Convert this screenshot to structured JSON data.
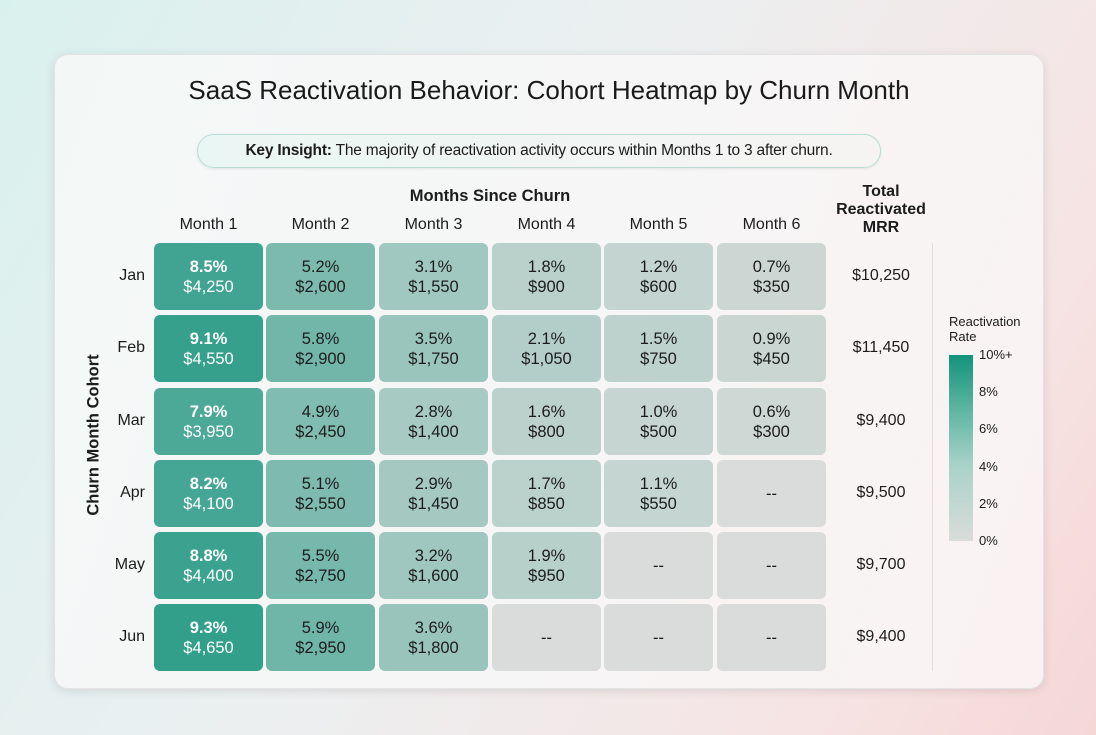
{
  "title": "SaaS Reactivation Behavior: Cohort Heatmap by Churn Month",
  "insight": {
    "label": "Key Insight:",
    "text": " The majority of reactivation activity occurs within Months 1 to 3 after churn."
  },
  "chart_data": {
    "type": "heatmap",
    "title": "SaaS Reactivation Behavior: Cohort Heatmap by Churn Month",
    "xlabel": "Months Since Churn",
    "ylabel": "Churn Month Cohort",
    "columns": [
      "Month 1",
      "Month 2",
      "Month 3",
      "Month 4",
      "Month 5",
      "Month 6"
    ],
    "rows": [
      "Jan",
      "Feb",
      "Mar",
      "Apr",
      "May",
      "Jun"
    ],
    "rates": [
      [
        8.5,
        5.2,
        3.1,
        1.8,
        1.2,
        0.7
      ],
      [
        9.1,
        5.8,
        3.5,
        2.1,
        1.5,
        0.9
      ],
      [
        7.9,
        4.9,
        2.8,
        1.6,
        1.0,
        0.6
      ],
      [
        8.2,
        5.1,
        2.9,
        1.7,
        1.1,
        null
      ],
      [
        8.8,
        5.5,
        3.2,
        1.9,
        null,
        null
      ],
      [
        9.3,
        5.9,
        3.6,
        null,
        null,
        null
      ]
    ],
    "mrr": [
      [
        "$4,250",
        "$2,600",
        "$1,550",
        "$900",
        "$600",
        "$350"
      ],
      [
        "$4,550",
        "$2,900",
        "$1,750",
        "$1,050",
        "$750",
        "$450"
      ],
      [
        "$3,950",
        "$2,450",
        "$1,400",
        "$800",
        "$500",
        "$300"
      ],
      [
        "$4,100",
        "$2,550",
        "$1,450",
        "$850",
        "$550",
        null
      ],
      [
        "$4,400",
        "$2,750",
        "$1,600",
        "$950",
        null,
        null
      ],
      [
        "$4,650",
        "$2,950",
        "$1,800",
        null,
        null,
        null
      ]
    ],
    "empty_label": "--",
    "total_header": "Total Reactivated MRR",
    "totals": [
      "$10,250",
      "$11,450",
      "$9,400",
      "$9,500",
      "$9,700",
      "$9,400"
    ],
    "legend": {
      "title": "Reactivation Rate",
      "ticks": [
        "0%",
        "2%",
        "4%",
        "6%",
        "8%",
        "10%+"
      ],
      "range": [
        0,
        10
      ],
      "color_low": "#d9dcda",
      "color_high": "#12937c"
    }
  }
}
